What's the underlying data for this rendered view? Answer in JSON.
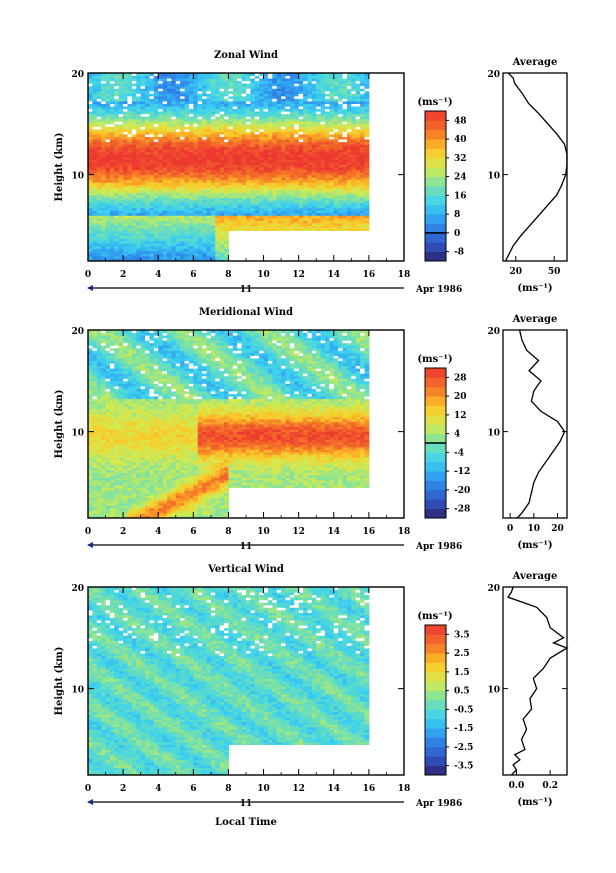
{
  "figure": {
    "shared_axis": {
      "date_label": "11",
      "month_year_label": "Apr 1986",
      "xlabel_bottom": "Local Time"
    },
    "avg_title": "Average",
    "unit": "(ms⁻¹)"
  },
  "chart_data": [
    {
      "type": "heatmap",
      "title": "Zonal Wind",
      "ylabel": "Height (km)",
      "xlabel": "",
      "x_ticks": [
        0,
        2,
        4,
        6,
        8,
        10,
        12,
        14,
        16,
        18
      ],
      "y_ticks": [
        10,
        20
      ],
      "xlim": [
        0,
        18
      ],
      "ylim": [
        1.5,
        20
      ],
      "data_extent_x": [
        0,
        16
      ],
      "cutout": {
        "x": [
          8,
          16
        ],
        "y": [
          1.5,
          4.5
        ]
      },
      "colorbar": {
        "unit": "(ms⁻¹)",
        "ticks": [
          -8,
          0,
          8,
          16,
          24,
          32,
          40,
          48
        ],
        "range": [
          -12,
          52
        ],
        "zero_line": 0
      },
      "profile": {
        "height": [
          1.5,
          2,
          3,
          4,
          5,
          6,
          7,
          8,
          9,
          10,
          11,
          12,
          13,
          14,
          15,
          16,
          17,
          18,
          19,
          19.5,
          20
        ],
        "value": [
          12,
          14,
          18,
          24,
          31,
          38,
          45,
          52,
          56,
          59,
          60,
          60,
          58,
          52,
          45,
          38,
          30,
          25,
          19,
          18,
          14
        ],
        "x_ticks": [
          20,
          50
        ],
        "xlim": [
          10,
          60
        ],
        "xlabel": "(ms⁻¹)"
      }
    },
    {
      "type": "heatmap",
      "title": "Meridional Wind",
      "ylabel": "Height (km)",
      "xlabel": "",
      "x_ticks": [
        0,
        2,
        4,
        6,
        8,
        10,
        12,
        14,
        16,
        18
      ],
      "y_ticks": [
        10,
        20
      ],
      "xlim": [
        0,
        18
      ],
      "ylim": [
        1.5,
        20
      ],
      "data_extent_x": [
        0,
        16
      ],
      "cutout": {
        "x": [
          8,
          16
        ],
        "y": [
          1.5,
          4.5
        ]
      },
      "colorbar": {
        "unit": "(ms⁻¹)",
        "ticks": [
          -28,
          -20,
          -12,
          -4,
          4,
          12,
          20,
          28
        ],
        "range": [
          -32,
          32
        ],
        "zero_line": 0
      },
      "profile": {
        "height": [
          1.5,
          2,
          3,
          4,
          5,
          6,
          7,
          8,
          9,
          10,
          11,
          12,
          13,
          14,
          15,
          16,
          17,
          18,
          19,
          20
        ],
        "value": [
          3,
          5,
          8,
          9,
          10,
          12,
          15,
          18,
          21,
          23,
          20,
          13,
          9,
          10,
          13,
          8,
          12,
          7,
          5,
          4
        ],
        "x_ticks": [
          0,
          10,
          20
        ],
        "xlim": [
          -3,
          24
        ],
        "xlabel": "(ms⁻¹)"
      }
    },
    {
      "type": "heatmap",
      "title": "Vertical Wind",
      "ylabel": "Height (km)",
      "xlabel": "Local Time",
      "x_ticks": [
        0,
        2,
        4,
        6,
        8,
        10,
        12,
        14,
        16,
        18
      ],
      "y_ticks": [
        10,
        20
      ],
      "xlim": [
        0,
        18
      ],
      "ylim": [
        1.5,
        20
      ],
      "data_extent_x": [
        0,
        16
      ],
      "cutout": {
        "x": [
          8,
          16
        ],
        "y": [
          1.5,
          4.5
        ]
      },
      "colorbar": {
        "unit": "(ms⁻¹)",
        "ticks": [
          -3.5,
          -2.5,
          -1.5,
          -0.5,
          0.5,
          1.5,
          2.5,
          3.5
        ],
        "range": [
          -4,
          4
        ],
        "zero_line": null
      },
      "profile": {
        "height": [
          1.5,
          2,
          2.5,
          3,
          3.5,
          4,
          5,
          6,
          7,
          8,
          9,
          10,
          11,
          12,
          13,
          14,
          14.5,
          15,
          16,
          17,
          18,
          19,
          19.5,
          20
        ],
        "value": [
          -0.03,
          0.0,
          -0.02,
          0.02,
          -0.01,
          0.05,
          0.03,
          0.06,
          0.04,
          0.09,
          0.08,
          0.12,
          0.1,
          0.16,
          0.2,
          0.3,
          0.22,
          0.28,
          0.2,
          0.18,
          0.12,
          -0.05,
          -0.03,
          -0.02
        ],
        "x_ticks": [
          0.0,
          0.2
        ],
        "x_tick_labels": [
          "0.0",
          "0.2"
        ],
        "xlim": [
          -0.08,
          0.3
        ],
        "xlabel": "(ms⁻¹)"
      }
    }
  ]
}
